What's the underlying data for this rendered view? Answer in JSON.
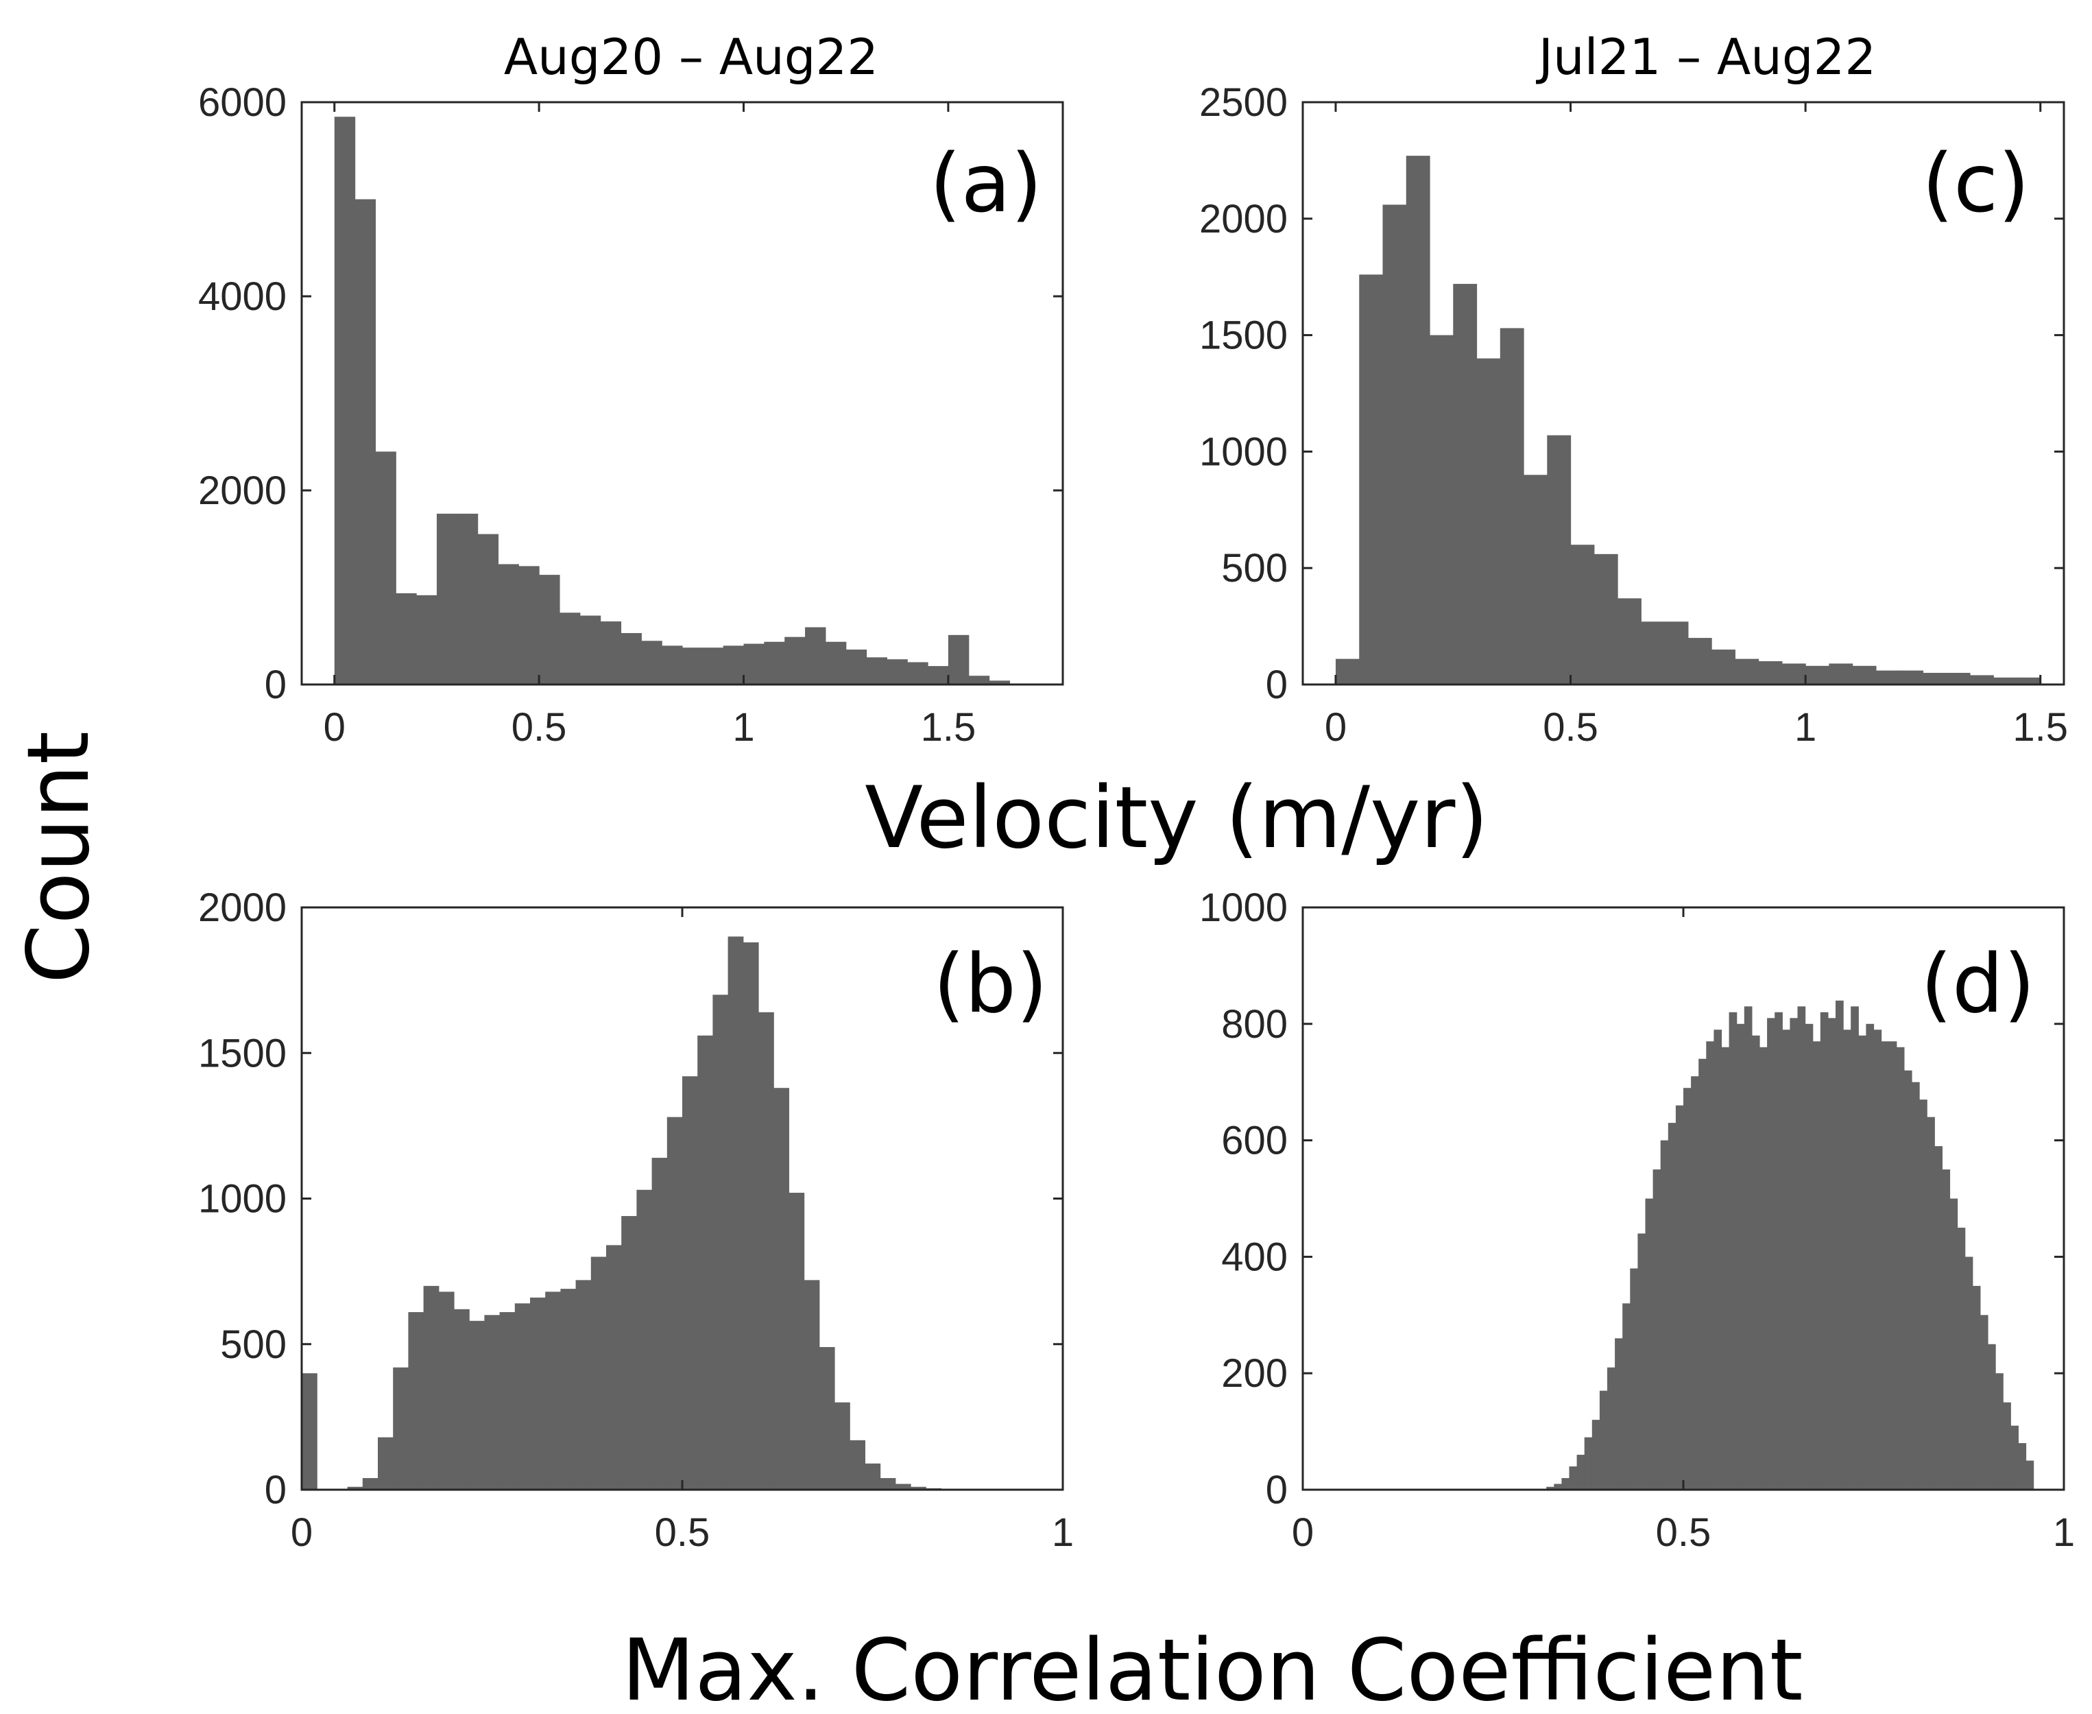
{
  "figure": {
    "ylabel": "Count",
    "xlabel_top_row": "Velocity (m/yr)",
    "xlabel_bottom_row": "Max. Correlation Coefficient"
  },
  "colors": {
    "bar": "#636363",
    "axis": "#262626",
    "background": "#ffffff"
  },
  "chart_data": [
    {
      "id": "a",
      "type": "bar",
      "title": "Aug20 – Aug22",
      "panel_label": "(a)",
      "xlabel": "Velocity (m/yr)",
      "xlim": [
        -0.08,
        1.78
      ],
      "ylim": [
        0,
        6000
      ],
      "xticks": [
        0,
        0.5,
        1,
        1.5
      ],
      "xtick_labels": [
        "0",
        "0.5",
        "1",
        "1.5"
      ],
      "yticks": [
        0,
        2000,
        4000,
        6000
      ],
      "ytick_labels": [
        "0",
        "2000",
        "4000",
        "6000"
      ],
      "bin_start": 0.0,
      "bin_width": 0.05,
      "values": [
        5850,
        5000,
        2400,
        940,
        920,
        1760,
        1760,
        1550,
        1240,
        1220,
        1130,
        740,
        710,
        650,
        530,
        450,
        400,
        380,
        380,
        400,
        420,
        440,
        490,
        590,
        440,
        360,
        280,
        260,
        230,
        190,
        510,
        90,
        40,
        10
      ],
      "grid": false
    },
    {
      "id": "b",
      "type": "bar",
      "panel_label": "(b)",
      "xlabel": "Max. Correlation Coefficient",
      "xlim": [
        0,
        1
      ],
      "ylim": [
        0,
        2000
      ],
      "xticks": [
        0,
        0.5,
        1
      ],
      "xtick_labels": [
        "0",
        "0.5",
        "1"
      ],
      "yticks": [
        0,
        500,
        1000,
        1500,
        2000
      ],
      "ytick_labels": [
        "0",
        "500",
        "1000",
        "1500",
        "2000"
      ],
      "bin_start": 0.0,
      "bin_width": 0.02,
      "values": [
        400,
        0,
        0,
        10,
        40,
        180,
        420,
        610,
        700,
        680,
        620,
        580,
        600,
        610,
        640,
        660,
        680,
        690,
        720,
        800,
        840,
        940,
        1030,
        1140,
        1280,
        1420,
        1560,
        1700,
        1900,
        1880,
        1640,
        1380,
        1020,
        720,
        490,
        300,
        170,
        90,
        40,
        20,
        10,
        5,
        0,
        0,
        0,
        0,
        0,
        0,
        0,
        0
      ],
      "grid": false
    },
    {
      "id": "c",
      "type": "bar",
      "title": "Jul21 – Aug22",
      "panel_label": "(c)",
      "xlabel": "Velocity (m/yr)",
      "xlim": [
        -0.07,
        1.55
      ],
      "ylim": [
        0,
        2500
      ],
      "xticks": [
        0,
        0.5,
        1,
        1.5
      ],
      "xtick_labels": [
        "0",
        "0.5",
        "1",
        "1.5"
      ],
      "yticks": [
        0,
        500,
        1000,
        1500,
        2000,
        2500
      ],
      "ytick_labels": [
        "0",
        "500",
        "1000",
        "1500",
        "2000",
        "2500"
      ],
      "bin_start": 0.0,
      "bin_width": 0.05,
      "values": [
        110,
        1760,
        2060,
        2270,
        1500,
        1720,
        1400,
        1530,
        900,
        1070,
        600,
        560,
        370,
        270,
        270,
        200,
        150,
        110,
        100,
        90,
        80,
        90,
        80,
        60,
        60,
        50,
        50,
        40,
        30,
        30
      ],
      "grid": false
    },
    {
      "id": "d",
      "type": "bar",
      "panel_label": "(d)",
      "xlabel": "Max. Correlation Coefficient",
      "xlim": [
        0,
        1
      ],
      "ylim": [
        0,
        1000
      ],
      "xticks": [
        0,
        0.5,
        1
      ],
      "xtick_labels": [
        "0",
        "0.5",
        "1"
      ],
      "yticks": [
        0,
        200,
        400,
        600,
        800,
        1000
      ],
      "ytick_labels": [
        "0",
        "200",
        "400",
        "600",
        "800",
        "1000"
      ],
      "bin_start": 0.32,
      "bin_width": 0.01,
      "values": [
        5,
        10,
        20,
        40,
        60,
        90,
        120,
        170,
        210,
        260,
        320,
        380,
        440,
        500,
        550,
        600,
        630,
        660,
        690,
        710,
        740,
        770,
        790,
        760,
        820,
        800,
        830,
        780,
        760,
        810,
        820,
        790,
        810,
        830,
        800,
        770,
        820,
        810,
        840,
        790,
        830,
        780,
        800,
        790,
        770,
        770,
        760,
        720,
        700,
        670,
        640,
        590,
        550,
        500,
        450,
        400,
        350,
        300,
        250,
        200,
        150,
        110,
        80,
        50
      ]
    }
  ]
}
